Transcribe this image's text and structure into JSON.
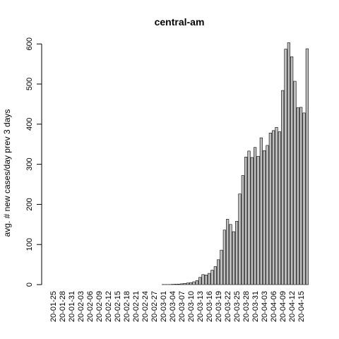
{
  "chart_data": {
    "type": "bar",
    "title": "central-am",
    "xlabel": "",
    "ylabel": "avg. # new cases/day prev  3  days",
    "ylim": [
      0,
      625
    ],
    "yticks": [
      0,
      100,
      200,
      300,
      400,
      500,
      600
    ],
    "bar_fill": "#bebebe",
    "bar_stroke": "#000000",
    "date_labels": [
      "20-01-25",
      "20-01-28",
      "20-01-31",
      "20-02-03",
      "20-02-06",
      "20-02-09",
      "20-02-12",
      "20-02-15",
      "20-02-18",
      "20-02-21",
      "20-02-24",
      "20-02-27",
      "20-03-01",
      "20-03-04",
      "20-03-07",
      "20-03-10",
      "20-03-13",
      "20-03-16",
      "20-03-19",
      "20-03-22",
      "20-03-25",
      "20-03-28",
      "20-03-31",
      "20-04-03",
      "20-04-06",
      "20-04-09",
      "20-04-12",
      "20-04-15"
    ],
    "first_date": "20-01-25",
    "values": [
      0,
      0,
      0,
      0,
      0,
      0,
      0,
      0,
      0,
      0,
      0,
      0,
      0,
      0,
      0,
      0,
      0,
      0,
      0,
      0,
      0,
      0,
      0,
      0,
      0,
      0,
      0,
      0,
      0,
      0,
      0,
      0,
      0,
      0,
      0,
      0,
      0.3,
      0.3,
      0.3,
      0.7,
      1,
      1.3,
      2,
      3,
      4,
      5,
      7,
      10,
      18,
      25,
      24,
      28,
      36,
      45,
      62,
      86,
      136,
      163,
      150,
      132,
      158,
      226,
      272,
      318,
      333,
      317,
      342,
      320,
      366,
      334,
      347,
      378,
      384,
      392,
      381,
      484,
      587,
      603,
      568,
      507,
      441,
      442,
      428,
      588
    ]
  }
}
